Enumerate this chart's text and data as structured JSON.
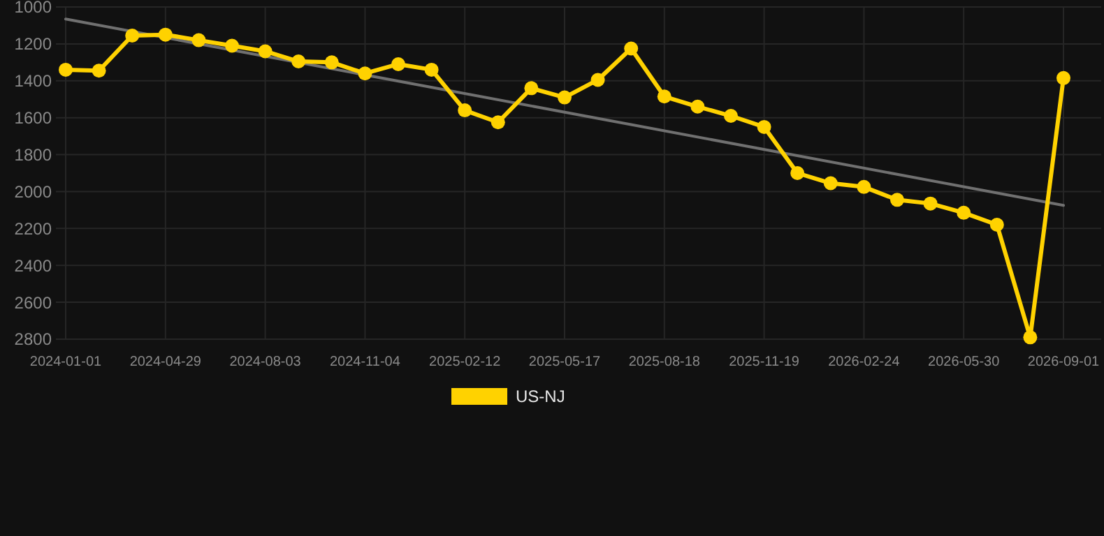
{
  "chart_data": {
    "type": "line",
    "categories": [
      "2024-01-01",
      null,
      null,
      "2024-04-29",
      null,
      null,
      "2024-08-03",
      null,
      null,
      "2024-11-04",
      null,
      null,
      "2025-02-12",
      null,
      null,
      "2025-05-17",
      null,
      null,
      "2025-08-18",
      null,
      null,
      "2025-11-19",
      null,
      null,
      "2026-02-24",
      null,
      null,
      "2026-05-30",
      null,
      null,
      "2026-09-01"
    ],
    "series": [
      {
        "name": "US-NJ",
        "color": "#ffd200",
        "marker": "circle",
        "values": [
          1340,
          1345,
          1155,
          1150,
          1180,
          1210,
          1240,
          1295,
          1300,
          1360,
          1310,
          1340,
          1560,
          1625,
          1440,
          1490,
          1395,
          1225,
          1485,
          1540,
          1590,
          1650,
          1900,
          1955,
          1975,
          2045,
          2065,
          2115,
          2180,
          2790,
          1385
        ]
      },
      {
        "type": "line",
        "color": "#707070",
        "marker": "none",
        "values": [
          1065,
          null,
          null,
          null,
          null,
          null,
          null,
          null,
          null,
          null,
          null,
          null,
          null,
          null,
          null,
          null,
          null,
          null,
          null,
          null,
          null,
          null,
          null,
          null,
          null,
          null,
          null,
          null,
          null,
          null,
          2075
        ]
      }
    ],
    "ylim": [
      2800,
      1000
    ],
    "yticks": [
      1000,
      1200,
      1400,
      1600,
      1800,
      2000,
      2200,
      2400,
      2600,
      2800
    ],
    "grid": true,
    "legend": "bottom"
  }
}
